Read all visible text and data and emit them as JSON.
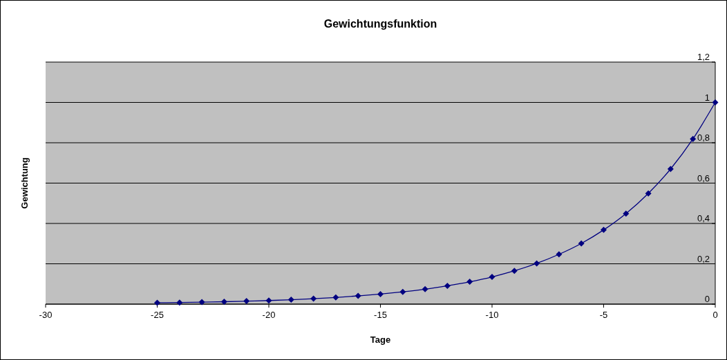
{
  "chart_data": {
    "type": "line",
    "title": "Gewichtungsfunktion",
    "xlabel": "Tage",
    "ylabel": "Gewichtung",
    "x": [
      -25,
      -24,
      -23,
      -22,
      -21,
      -20,
      -19,
      -18,
      -17,
      -16,
      -15,
      -14,
      -13,
      -12,
      -11,
      -10,
      -9,
      -8,
      -7,
      -6,
      -5,
      -4,
      -3,
      -2,
      -1,
      0
    ],
    "series": [
      {
        "color": "#000080",
        "values": [
          0.007,
          0.008,
          0.01,
          0.012,
          0.015,
          0.018,
          0.022,
          0.027,
          0.033,
          0.041,
          0.05,
          0.061,
          0.074,
          0.091,
          0.111,
          0.135,
          0.165,
          0.202,
          0.247,
          0.301,
          0.368,
          0.449,
          0.549,
          0.67,
          0.819,
          1
        ]
      }
    ],
    "xlim": [
      -30,
      0
    ],
    "xticks": [
      -30,
      -25,
      -20,
      -15,
      -10,
      -5,
      0
    ],
    "ylim": [
      0,
      1.2
    ],
    "yticks": [
      0,
      {
        "value": 0.2,
        "label": "0,2"
      },
      {
        "value": 0.4,
        "label": "0,4"
      },
      {
        "value": 0.6,
        "label": "0,6"
      },
      {
        "value": 0.8,
        "label": "0,8"
      },
      1,
      {
        "value": 1.2,
        "label": "1,2"
      }
    ],
    "grid": "y",
    "marker": "diamond",
    "line_style": "solid"
  }
}
